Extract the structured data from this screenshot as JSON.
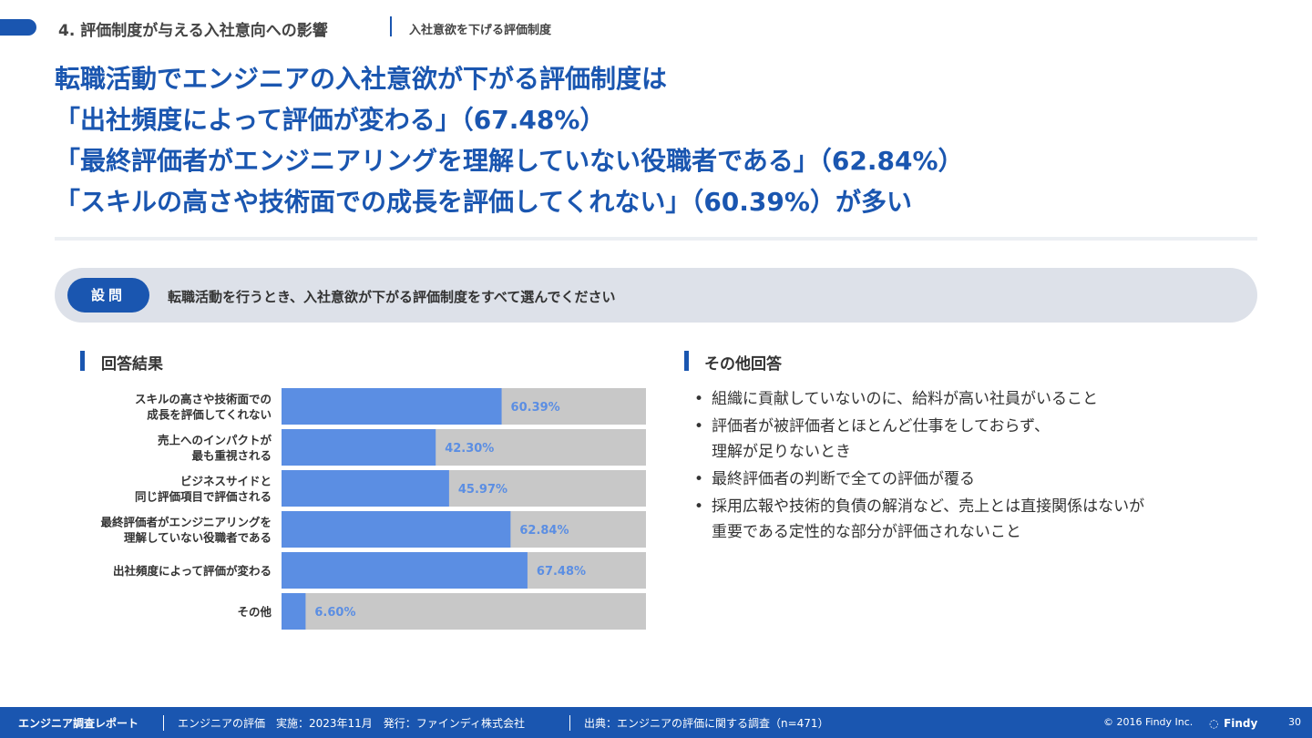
{
  "header": {
    "section_title": "4. 評価制度が与える入社意向への影響",
    "section_subtitle": "入社意欲を下げる評価制度"
  },
  "headline": {
    "lines": [
      "転職活動でエンジニアの入社意欲が下がる評価制度は",
      "「出社頻度によって評価が変わる」（67.48%）",
      "「最終評価者がエンジニアリングを理解していない役職者である」（62.84%）",
      "「スキルの高さや技術面での成長を評価してくれない」（60.39%）が多い"
    ]
  },
  "question": {
    "badge": "設問",
    "text": "転職活動を行うとき、入社意欲が下がる評価制度をすべて選んでください"
  },
  "results_heading": "回答結果",
  "other_heading": "その他回答",
  "other_answers": [
    {
      "lines": [
        "組織に貢献していないのに、給料が高い社員がいること"
      ]
    },
    {
      "lines": [
        "評価者が被評価者とほとんど仕事をしておらず、",
        "理解が足りないとき"
      ]
    },
    {
      "lines": [
        "最終評価者の判断で全ての評価が覆る"
      ]
    },
    {
      "lines": [
        "採用広報や技術的負債の解消など、売上とは直接関係はないが",
        "重要である定性的な部分が評価されないこと"
      ]
    }
  ],
  "bullet_char": "•",
  "chart_data": {
    "type": "bar",
    "orientation": "horizontal",
    "categories": [
      [
        "スキルの高さや技術面での",
        "成長を評価してくれない"
      ],
      [
        "売上へのインパクトが",
        "最も重視される"
      ],
      [
        "ビジネスサイドと",
        "同じ評価項目で評価される"
      ],
      [
        "最終評価者がエンジニアリングを",
        "理解していない役職者である"
      ],
      [
        "出社頻度によって評価が変わる"
      ],
      [
        "その他"
      ]
    ],
    "values": [
      60.39,
      42.3,
      45.97,
      62.84,
      67.48,
      6.6
    ],
    "value_labels": [
      "60.39%",
      "42.30%",
      "45.97%",
      "62.84%",
      "67.48%",
      "6.60%"
    ],
    "xlim": [
      0,
      100
    ],
    "colors": {
      "bar": "#5b8ee3",
      "track": "#c8c8c8"
    }
  },
  "footer": {
    "title": "エンジニア調査レポート",
    "meta1": "エンジニアの評価　実施：2023年11月　発行：ファインディ株式会社",
    "meta2": "出典：エンジニアの評価に関する調査（n=471）",
    "copyright": "© 2016 Findy Inc.",
    "logo": "Findy",
    "page": "30"
  }
}
